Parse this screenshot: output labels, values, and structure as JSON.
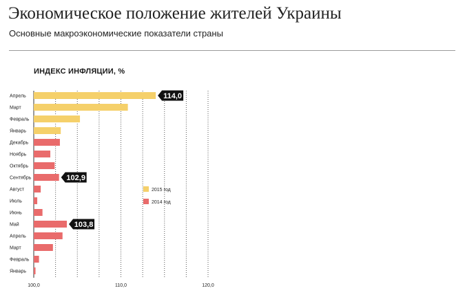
{
  "header": {
    "title": "Экономическое положение жителей Украины",
    "subtitle": "Основные макроэкономические показатели страны"
  },
  "chart_data": {
    "type": "bar",
    "orientation": "horizontal",
    "title": "ИНДЕКС ИНФЛЯЦИИ, %",
    "xlim": [
      100,
      120
    ],
    "xticks": [
      "100,0",
      "110,0",
      "120,0"
    ],
    "grid": "vertical dotted lines every 2.5",
    "legend_position": "right",
    "categories": [
      "Апрель",
      "Март",
      "Февраль",
      "Январь",
      "Декабрь",
      "Ноябрь",
      "Октябрь",
      "Сентябрь",
      "Август",
      "Июль",
      "Июнь",
      "Май",
      "Апрель",
      "Март",
      "Февраль",
      "Январь"
    ],
    "values": [
      114.0,
      110.8,
      105.3,
      103.1,
      103.0,
      101.9,
      102.4,
      102.9,
      100.8,
      100.4,
      101.0,
      103.8,
      103.3,
      102.2,
      100.6,
      100.2
    ],
    "series_index": [
      0,
      0,
      0,
      0,
      1,
      1,
      1,
      1,
      1,
      1,
      1,
      1,
      1,
      1,
      1,
      1
    ],
    "series": [
      {
        "name": "2015 год",
        "color": "#f5d06a"
      },
      {
        "name": "2014 год",
        "color": "#e96b6b"
      }
    ],
    "annotations": [
      {
        "category_index": 0,
        "label": "114,0"
      },
      {
        "category_index": 7,
        "label": "102,9"
      },
      {
        "category_index": 11,
        "label": "103,8"
      }
    ]
  }
}
